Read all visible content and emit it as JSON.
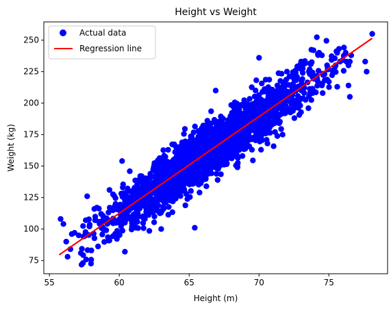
{
  "chart_data": {
    "type": "scatter",
    "title": "Height vs Weight",
    "xlabel": "Height (m)",
    "ylabel": "Weight (kg)",
    "xlim": [
      54.6,
      79.2
    ],
    "ylim": [
      64.5,
      264.5
    ],
    "xticks": [
      55,
      60,
      65,
      70,
      75
    ],
    "yticks": [
      75,
      100,
      125,
      150,
      175,
      200,
      225,
      250
    ],
    "grid": false,
    "legend_position": "top-left",
    "colors": {
      "points": "#0000ff",
      "line": "#ff0000"
    },
    "series": [
      {
        "name": "Actual data",
        "kind": "scatter",
        "seed": 7,
        "n": 2400,
        "x_mean": 66.4,
        "x_sd": 3.6,
        "x_min": 55.7,
        "x_max": 78.1,
        "noise_sd": 10,
        "points": [
          [
            55.8,
            108
          ],
          [
            56.0,
            104
          ],
          [
            56.2,
            90
          ],
          [
            56.3,
            78
          ],
          [
            56.5,
            84
          ],
          [
            56.6,
            96
          ],
          [
            56.8,
            97
          ],
          [
            57.1,
            95
          ],
          [
            57.4,
            73
          ],
          [
            57.6,
            107
          ],
          [
            57.7,
            126
          ],
          [
            58.0,
            83
          ],
          [
            58.7,
            112
          ],
          [
            59.3,
            131
          ],
          [
            60.2,
            154
          ],
          [
            60.4,
            82
          ],
          [
            63.0,
            100
          ],
          [
            65.4,
            101
          ],
          [
            66.3,
            186
          ],
          [
            66.9,
            210
          ],
          [
            70.0,
            236
          ],
          [
            72.0,
            225
          ],
          [
            73.9,
            242
          ],
          [
            74.3,
            240
          ],
          [
            74.5,
            238
          ],
          [
            74.5,
            214
          ],
          [
            75.6,
            240
          ],
          [
            75.0,
            217
          ],
          [
            75.6,
            213
          ],
          [
            75.8,
            233
          ],
          [
            76.2,
            240
          ],
          [
            76.4,
            230
          ],
          [
            76.5,
            233
          ],
          [
            76.6,
            238
          ],
          [
            76.4,
            214
          ],
          [
            76.5,
            205
          ],
          [
            77.7,
            225
          ],
          [
            77.6,
            233
          ],
          [
            78.1,
            255
          ]
        ]
      },
      {
        "name": "Regression line",
        "kind": "line",
        "x": [
          55.7,
          78.1
        ],
        "y": [
          79.5,
          251.5
        ]
      }
    ]
  }
}
